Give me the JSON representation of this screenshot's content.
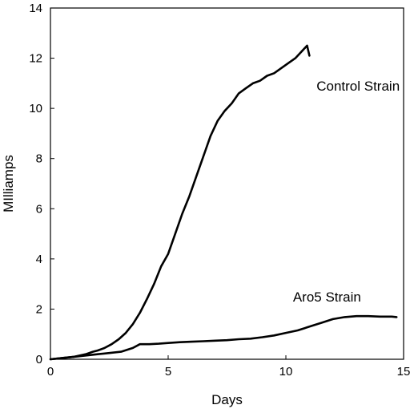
{
  "chart_data": {
    "type": "line",
    "title": "",
    "xlabel": "Days",
    "ylabel": "MIlliamps",
    "xlim": [
      0,
      15
    ],
    "ylim": [
      0,
      14
    ],
    "x_ticks": [
      0,
      5,
      10,
      15
    ],
    "y_ticks": [
      0,
      2,
      4,
      6,
      8,
      10,
      12,
      14
    ],
    "grid": false,
    "legend": "none",
    "series": [
      {
        "name": "Control Strain",
        "color": "#000000",
        "x": [
          0.0,
          0.5,
          1.0,
          1.5,
          1.8,
          2.0,
          2.3,
          2.6,
          2.9,
          3.2,
          3.5,
          3.8,
          4.1,
          4.4,
          4.7,
          5.0,
          5.3,
          5.6,
          5.9,
          6.2,
          6.5,
          6.8,
          7.1,
          7.4,
          7.7,
          8.0,
          8.3,
          8.6,
          8.9,
          9.2,
          9.5,
          9.8,
          10.1,
          10.4,
          10.7,
          10.9,
          11.0
        ],
        "values": [
          0.0,
          0.05,
          0.1,
          0.2,
          0.3,
          0.35,
          0.45,
          0.6,
          0.8,
          1.05,
          1.4,
          1.85,
          2.4,
          3.0,
          3.7,
          4.2,
          5.0,
          5.8,
          6.5,
          7.3,
          8.1,
          8.9,
          9.5,
          9.9,
          10.2,
          10.6,
          10.8,
          11.0,
          11.1,
          11.3,
          11.4,
          11.6,
          11.8,
          12.0,
          12.3,
          12.5,
          12.1
        ]
      },
      {
        "name": "Aro5 Strain",
        "color": "#000000",
        "x": [
          0.0,
          0.5,
          1.0,
          1.5,
          2.0,
          2.5,
          3.0,
          3.5,
          3.8,
          4.2,
          4.6,
          5.0,
          5.5,
          6.0,
          6.5,
          7.0,
          7.5,
          8.0,
          8.5,
          9.0,
          9.5,
          10.0,
          10.5,
          11.0,
          11.5,
          12.0,
          12.5,
          13.0,
          13.5,
          14.0,
          14.5,
          14.7
        ],
        "values": [
          0.0,
          0.05,
          0.1,
          0.15,
          0.2,
          0.25,
          0.3,
          0.45,
          0.6,
          0.6,
          0.62,
          0.65,
          0.68,
          0.7,
          0.72,
          0.74,
          0.76,
          0.8,
          0.82,
          0.88,
          0.95,
          1.05,
          1.15,
          1.3,
          1.45,
          1.6,
          1.68,
          1.72,
          1.72,
          1.7,
          1.7,
          1.68
        ]
      }
    ],
    "annotations": [
      {
        "text": "Control Strain",
        "x": 11.3,
        "y": 10.7
      },
      {
        "text": "Aro5 Strain",
        "x": 10.3,
        "y": 2.3
      }
    ]
  }
}
